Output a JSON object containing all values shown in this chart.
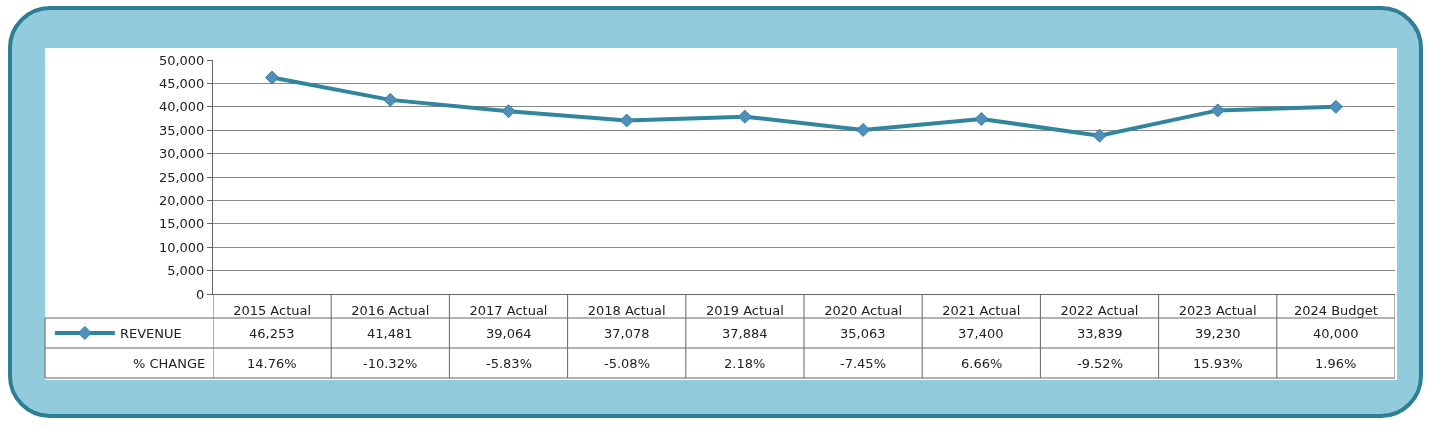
{
  "chart_data": {
    "type": "line",
    "categories": [
      "2015 Actual",
      "2016 Actual",
      "2017 Actual",
      "2018 Actual",
      "2019 Actual",
      "2020 Actual",
      "2021 Actual",
      "2022 Actual",
      "2023 Actual",
      "2024 Budget"
    ],
    "series": [
      {
        "name": "REVENUE",
        "color": "#31859c",
        "values": [
          46253,
          41481,
          39064,
          37078,
          37884,
          35063,
          37400,
          33839,
          39230,
          40000
        ],
        "value_labels": [
          "46,253",
          "41,481",
          "39,064",
          "37,078",
          "37,884",
          "35,063",
          "37,400",
          "33,839",
          "39,230",
          "40,000"
        ]
      }
    ],
    "marker": "diamond",
    "line_style": "solid",
    "grid": "y",
    "legend": "bottom left",
    "ylim": [
      0,
      50000
    ],
    "yticks": [
      {
        "value": 0,
        "label": "0"
      },
      {
        "value": 5000,
        "label": "5,000"
      },
      {
        "value": 10000,
        "label": "10,000"
      },
      {
        "value": 15000,
        "label": "15,000"
      },
      {
        "value": 20000,
        "label": "20,000"
      },
      {
        "value": 25000,
        "label": "25,000"
      },
      {
        "value": 30000,
        "label": "30,000"
      },
      {
        "value": 35000,
        "label": "35,000"
      },
      {
        "value": 40000,
        "label": "40,000"
      },
      {
        "value": 45000,
        "label": "45,000"
      },
      {
        "value": 50000,
        "label": "50,000"
      }
    ],
    "annotations": [
      "% CHANGE",
      "14.76%",
      "-10.32%",
      "-5.83%",
      "-5.08%",
      "2.18%",
      "-7.45%",
      "6.66%",
      "-9.52%",
      "15.93%",
      "1.96%"
    ]
  }
}
